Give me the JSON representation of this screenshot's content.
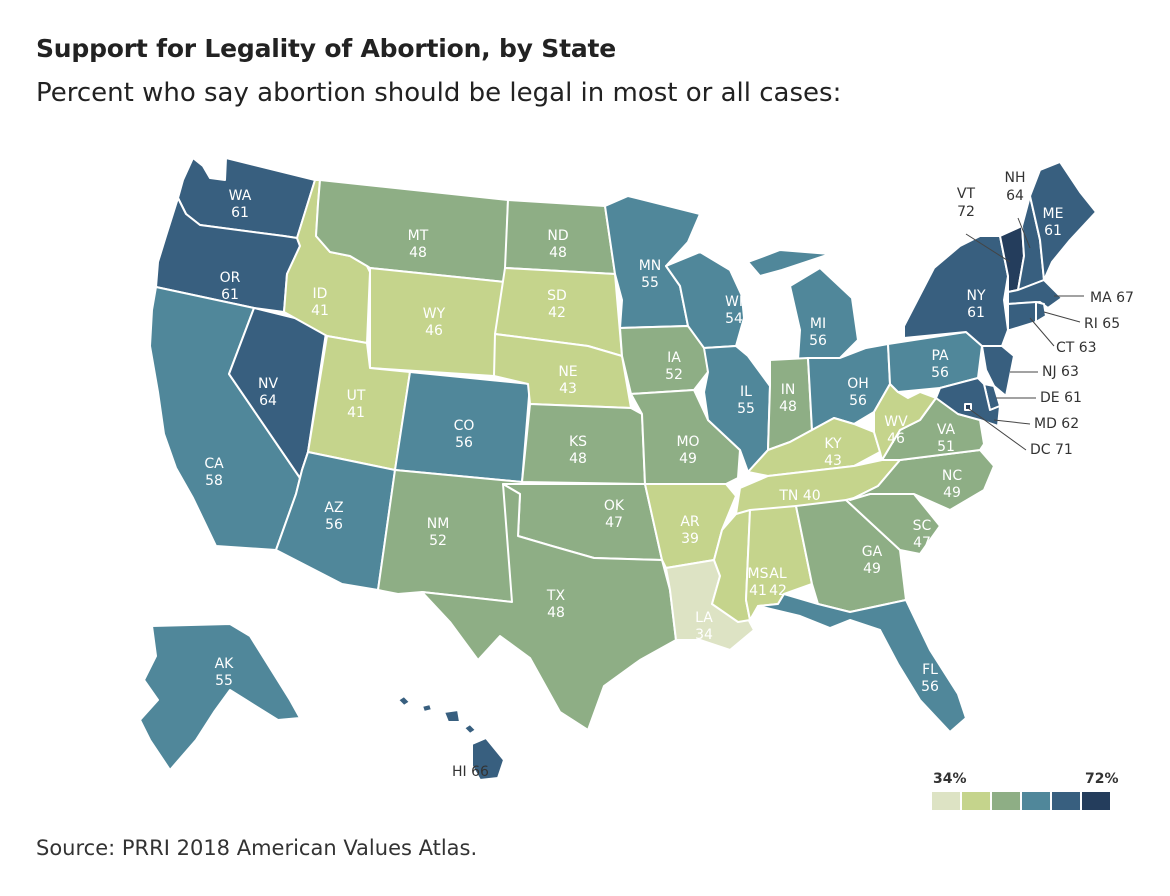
{
  "title": "Support for Legality of Abortion, by State",
  "subtitle": "Percent who say abortion should be legal in most or all cases:",
  "source": "Source: PRRI 2018 American Values Atlas.",
  "legend": {
    "min_label": "34%",
    "max_label": "72%",
    "colors": [
      "#dde3c4",
      "#c5d48c",
      "#8eae85",
      "#50879a",
      "#385f7f",
      "#243d5c"
    ]
  },
  "states": [
    {
      "abbr": "WA",
      "value": 61,
      "display": "WA 61"
    },
    {
      "abbr": "OR",
      "value": 61,
      "display": "OR 61"
    },
    {
      "abbr": "CA",
      "value": 58,
      "display": "CA 58"
    },
    {
      "abbr": "NV",
      "value": 64,
      "display": "NV 64"
    },
    {
      "abbr": "ID",
      "value": 41,
      "display": "ID 41"
    },
    {
      "abbr": "MT",
      "value": 48,
      "display": "MT 48"
    },
    {
      "abbr": "WY",
      "value": 46,
      "display": "WY 46"
    },
    {
      "abbr": "UT",
      "value": 41,
      "display": "UT 41"
    },
    {
      "abbr": "AZ",
      "value": 56,
      "display": "AZ 56"
    },
    {
      "abbr": "CO",
      "value": 56,
      "display": "CO 56"
    },
    {
      "abbr": "NM",
      "value": 52,
      "display": "NM 52"
    },
    {
      "abbr": "ND",
      "value": 48,
      "display": "ND 48"
    },
    {
      "abbr": "SD",
      "value": 42,
      "display": "SD 42"
    },
    {
      "abbr": "NE",
      "value": 43,
      "display": "NE 43"
    },
    {
      "abbr": "KS",
      "value": 48,
      "display": "KS 48"
    },
    {
      "abbr": "OK",
      "value": 47,
      "display": "OK 47"
    },
    {
      "abbr": "TX",
      "value": 48,
      "display": "TX 48"
    },
    {
      "abbr": "MN",
      "value": 55,
      "display": "MN 55"
    },
    {
      "abbr": "IA",
      "value": 52,
      "display": "IA 52"
    },
    {
      "abbr": "MO",
      "value": 49,
      "display": "MO 49"
    },
    {
      "abbr": "AR",
      "value": 39,
      "display": "AR 39"
    },
    {
      "abbr": "LA",
      "value": 34,
      "display": "LA 34"
    },
    {
      "abbr": "WI",
      "value": 54,
      "display": "WI 54"
    },
    {
      "abbr": "IL",
      "value": 55,
      "display": "IL 55"
    },
    {
      "abbr": "MI",
      "value": 56,
      "display": "MI 56"
    },
    {
      "abbr": "IN",
      "value": 48,
      "display": "IN 48"
    },
    {
      "abbr": "OH",
      "value": 56,
      "display": "OH 56"
    },
    {
      "abbr": "KY",
      "value": 43,
      "display": "KY 43"
    },
    {
      "abbr": "TN",
      "value": 40,
      "display": "TN 40"
    },
    {
      "abbr": "MS",
      "value": 41,
      "display": "MS 41"
    },
    {
      "abbr": "AL",
      "value": 42,
      "display": "AL 42"
    },
    {
      "abbr": "GA",
      "value": 49,
      "display": "GA 49"
    },
    {
      "abbr": "FL",
      "value": 56,
      "display": "FL 56"
    },
    {
      "abbr": "SC",
      "value": 47,
      "display": "SC 47"
    },
    {
      "abbr": "NC",
      "value": 49,
      "display": "NC 49"
    },
    {
      "abbr": "VA",
      "value": 51,
      "display": "VA 51"
    },
    {
      "abbr": "WV",
      "value": 46,
      "display": "WV 46"
    },
    {
      "abbr": "PA",
      "value": 56,
      "display": "PA 56"
    },
    {
      "abbr": "NY",
      "value": 61,
      "display": "NY 61"
    },
    {
      "abbr": "VT",
      "value": 72,
      "display": "VT 72"
    },
    {
      "abbr": "NH",
      "value": 64,
      "display": "NH 64"
    },
    {
      "abbr": "ME",
      "value": 61,
      "display": "ME 61"
    },
    {
      "abbr": "MA",
      "value": 67,
      "display": "MA 67"
    },
    {
      "abbr": "RI",
      "value": 65,
      "display": "RI 65"
    },
    {
      "abbr": "CT",
      "value": 63,
      "display": "CT 63"
    },
    {
      "abbr": "NJ",
      "value": 63,
      "display": "NJ 63"
    },
    {
      "abbr": "DE",
      "value": 61,
      "display": "DE 61"
    },
    {
      "abbr": "MD",
      "value": 62,
      "display": "MD 62"
    },
    {
      "abbr": "DC",
      "value": 71,
      "display": "DC 71"
    },
    {
      "abbr": "AK",
      "value": 55,
      "display": "AK 55"
    },
    {
      "abbr": "HI",
      "value": 66,
      "display": "HI 66"
    }
  ]
}
